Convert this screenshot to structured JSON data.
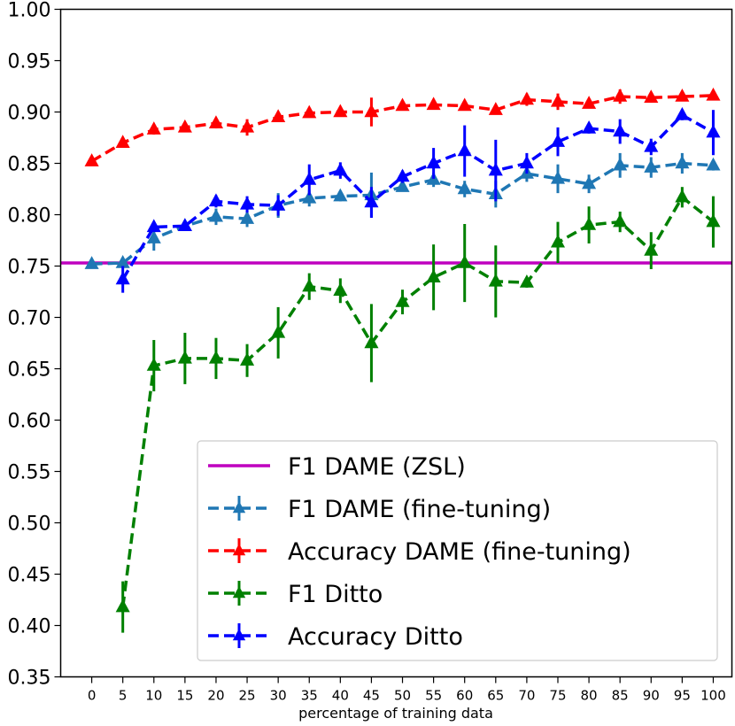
{
  "chart_data": {
    "type": "line",
    "title": "",
    "xlabel": "percentage of training data",
    "ylabel": "",
    "x": [
      0,
      5,
      10,
      15,
      20,
      25,
      30,
      35,
      40,
      45,
      50,
      55,
      60,
      65,
      70,
      75,
      80,
      85,
      90,
      95,
      100
    ],
    "x_tick_labels": [
      "0",
      "5",
      "10",
      "15",
      "20",
      "25",
      "30",
      "35",
      "40",
      "45",
      "50",
      "55",
      "60",
      "65",
      "70",
      "75",
      "80",
      "85",
      "90",
      "95",
      "100"
    ],
    "y_tick_labels": [
      "0.35",
      "0.40",
      "0.45",
      "0.50",
      "0.55",
      "0.60",
      "0.65",
      "0.70",
      "0.75",
      "0.80",
      "0.85",
      "0.90",
      "0.95",
      "1.00"
    ],
    "ylim": [
      0.35,
      1.0
    ],
    "xlim": [
      -5,
      103
    ],
    "grid": false,
    "legend_position": "lower-right",
    "series": [
      {
        "name": "F1 DAME (ZSL)",
        "style": "solid",
        "marker": "none",
        "color": "#bf00bf",
        "values": [
          0.753,
          0.753,
          0.753,
          0.753,
          0.753,
          0.753,
          0.753,
          0.753,
          0.753,
          0.753,
          0.753,
          0.753,
          0.753,
          0.753,
          0.753,
          0.753,
          0.753,
          0.753,
          0.753,
          0.753,
          0.753
        ]
      },
      {
        "name": "F1 DAME (fine-tuning)",
        "style": "dashed",
        "marker": "triangle",
        "color": "#1f77b4",
        "values": [
          0.752,
          0.753,
          0.777,
          0.789,
          0.798,
          0.796,
          0.809,
          0.816,
          0.818,
          0.819,
          0.827,
          0.834,
          0.825,
          0.82,
          0.84,
          0.835,
          0.83,
          0.848,
          0.846,
          0.85,
          0.848
        ],
        "errors": [
          0,
          0,
          0.012,
          0.004,
          0.008,
          0.008,
          0.012,
          0.008,
          0.005,
          0.022,
          0.004,
          0.007,
          0.008,
          0.013,
          0.008,
          0.014,
          0.009,
          0.012,
          0.01,
          0.01,
          0.005
        ]
      },
      {
        "name": "Accuracy DAME (fine-tuning)",
        "style": "dashed",
        "marker": "triangle",
        "color": "#ff0000",
        "values": [
          0.852,
          0.87,
          0.883,
          0.885,
          0.889,
          0.885,
          0.895,
          0.899,
          0.9,
          0.9,
          0.906,
          0.907,
          0.906,
          0.902,
          0.912,
          0.91,
          0.908,
          0.915,
          0.914,
          0.915,
          0.916
        ],
        "errors": [
          0,
          0.003,
          0.005,
          0.003,
          0.005,
          0.008,
          0.004,
          0.004,
          0.004,
          0.014,
          0.004,
          0.004,
          0.004,
          0.004,
          0.006,
          0.008,
          0.004,
          0.007,
          0.005,
          0.004,
          0.004
        ]
      },
      {
        "name": "F1 Ditto",
        "style": "dashed",
        "marker": "triangle",
        "color": "#008000",
        "values": [
          null,
          0.418,
          0.653,
          0.66,
          0.66,
          0.658,
          0.685,
          0.73,
          0.726,
          0.675,
          0.715,
          0.739,
          0.753,
          0.735,
          0.734,
          0.773,
          0.79,
          0.793,
          0.765,
          0.817,
          0.793
        ],
        "errors": [
          0,
          0.025,
          0.025,
          0.025,
          0.02,
          0.016,
          0.025,
          0.013,
          0.012,
          0.038,
          0.012,
          0.032,
          0.038,
          0.035,
          0.005,
          0.02,
          0.018,
          0.01,
          0.018,
          0.01,
          0.025
        ]
      },
      {
        "name": "Accuracy Ditto",
        "style": "dashed",
        "marker": "triangle",
        "color": "#0000ff",
        "values": [
          null,
          0.737,
          0.788,
          0.789,
          0.813,
          0.81,
          0.809,
          0.834,
          0.843,
          0.812,
          0.837,
          0.85,
          0.862,
          0.843,
          0.85,
          0.871,
          0.884,
          0.881,
          0.866,
          0.897,
          0.88
        ],
        "errors": [
          0,
          0.013,
          0.004,
          0.004,
          0.006,
          0.008,
          0.01,
          0.015,
          0.008,
          0.015,
          0.006,
          0.015,
          0.025,
          0.03,
          0.01,
          0.014,
          0.005,
          0.012,
          0.008,
          0.005,
          0.022
        ]
      }
    ]
  }
}
